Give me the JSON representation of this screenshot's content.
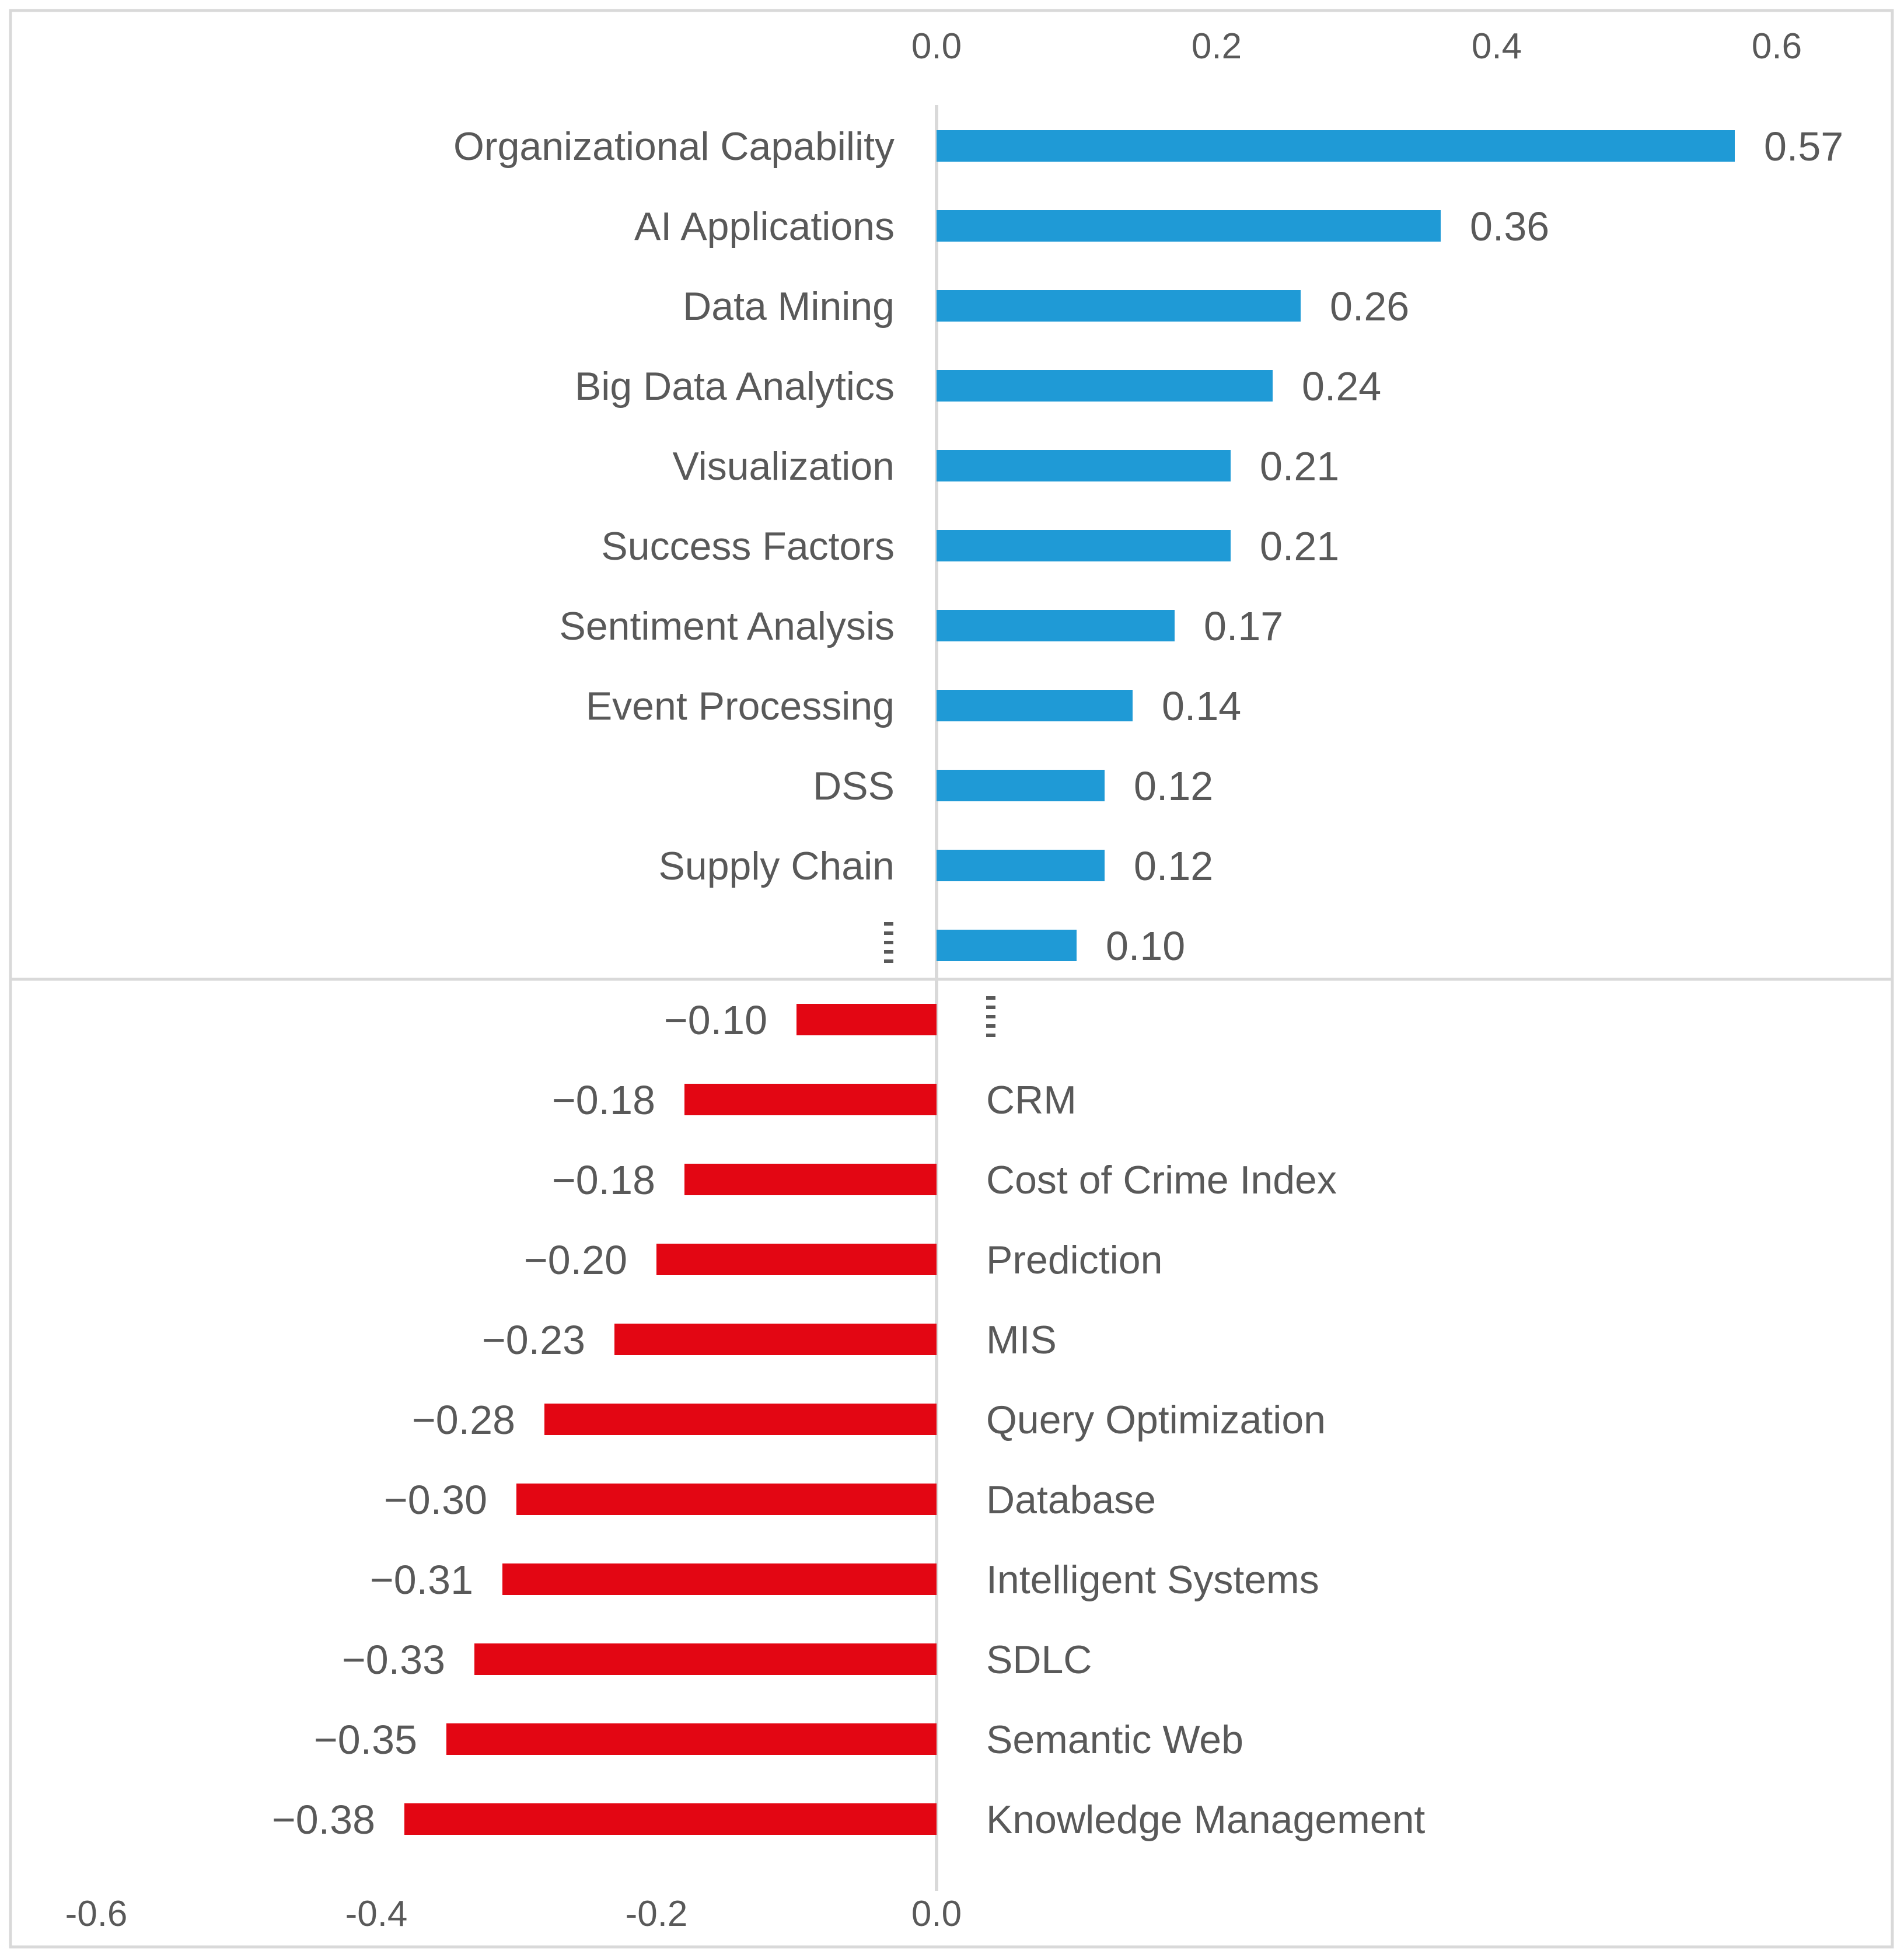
{
  "chart_data": [
    {
      "type": "bar",
      "orientation": "horizontal",
      "panel": "positive",
      "axis_position": "top",
      "xlim": [
        0,
        0.6
      ],
      "ticks": [
        "0.0",
        "0.2",
        "0.4",
        "0.6"
      ],
      "tick_values": [
        0,
        0.2,
        0.4,
        0.6
      ],
      "categories": [
        "Organizational Capability",
        "AI Applications",
        "Data Mining",
        "Big Data Analytics",
        "Visualization",
        "Success Factors",
        "Sentiment Analysis",
        "Event Processing",
        "DSS",
        "Supply Chain",
        ""
      ],
      "values": [
        0.57,
        0.36,
        0.26,
        0.24,
        0.21,
        0.21,
        0.17,
        0.14,
        0.12,
        0.12,
        0.1
      ],
      "value_labels": [
        "0.57",
        "0.36",
        "0.26",
        "0.24",
        "0.21",
        "0.21",
        "0.17",
        "0.14",
        "0.12",
        "0.12",
        "0.10"
      ],
      "has_ellipsis_row": true,
      "color": "#1f9ad6"
    },
    {
      "type": "bar",
      "orientation": "horizontal",
      "panel": "negative",
      "axis_position": "bottom",
      "xlim": [
        -0.6,
        0.0
      ],
      "ticks": [
        "-0.6",
        "-0.4",
        "-0.2",
        "0.0"
      ],
      "tick_values": [
        -0.6,
        -0.4,
        -0.2,
        0.0
      ],
      "categories": [
        "",
        "CRM",
        "Cost of Crime Index",
        "Prediction",
        "MIS",
        "Query Optimization",
        "Database",
        "Intelligent Systems",
        "SDLC",
        "Semantic Web",
        "Knowledge Management"
      ],
      "values": [
        -0.1,
        -0.18,
        -0.18,
        -0.2,
        -0.23,
        -0.28,
        -0.3,
        -0.31,
        -0.33,
        -0.35,
        -0.38
      ],
      "value_labels": [
        "−0.10",
        "−0.18",
        "−0.18",
        "−0.20",
        "−0.23",
        "−0.28",
        "−0.30",
        "−0.31",
        "−0.33",
        "−0.35",
        "−0.38"
      ],
      "has_ellipsis_row": true,
      "color": "#e30613"
    }
  ]
}
